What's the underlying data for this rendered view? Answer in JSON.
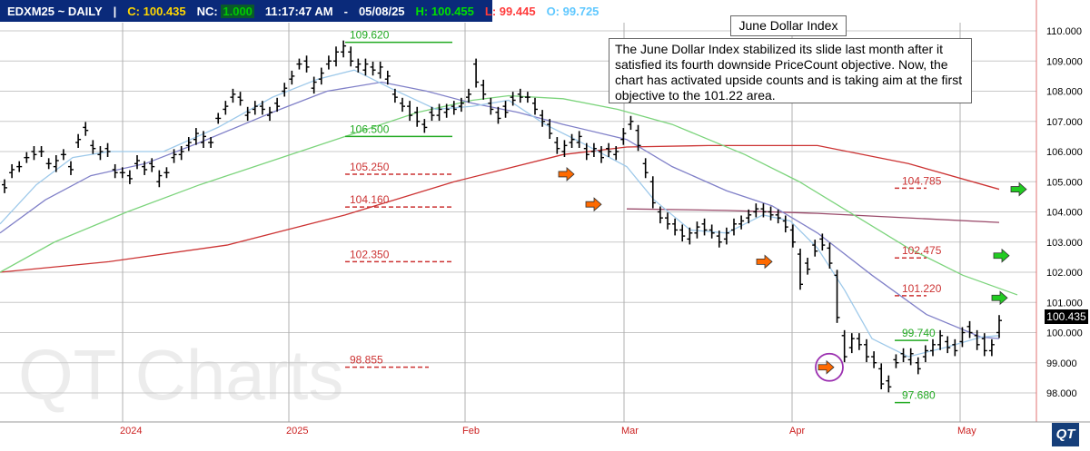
{
  "header": {
    "symbol": "EDXM25 ~ DAILY",
    "sep": "|",
    "close_label": "C:",
    "close": "100.435",
    "nc_label": "NC:",
    "nc": "1.000",
    "time": "11:17:47 AM",
    "dash": "-",
    "date": "05/08/25",
    "high_label": "H:",
    "high": "100.455",
    "low_label": "L:",
    "low": "99.445",
    "open_label": "O:",
    "open": "99.725",
    "colors": {
      "bg": "#0a2a7a",
      "close": "#ffd700",
      "nc": "#00c800",
      "high": "#00c800",
      "low": "#ff3b3b",
      "open": "#5fc8ff"
    }
  },
  "info_title": "June Dollar Index",
  "info_text": "The June Dollar Index stabilized its slide last month after it satisfied its fourth downside PriceCount objective. Now, the chart has activated upside counts and is taking aim at the first objective to the 101.22 area.",
  "watermark": "QT Charts",
  "logo_text": "QT",
  "last_price": "100.435",
  "chart_data": {
    "type": "line",
    "subtype": "ohlc-bars with moving averages",
    "y_axis": {
      "min": 97.5,
      "max": 110.2,
      "side": "right",
      "ticks": [
        "110.000",
        "109.000",
        "108.000",
        "107.000",
        "106.000",
        "105.000",
        "104.000",
        "103.000",
        "102.000",
        "101.000",
        "100.000",
        "99.000",
        "98.000"
      ]
    },
    "x_axis": {
      "labels": [
        "2024",
        "2025",
        "Feb",
        "Mar",
        "Apr",
        "May"
      ]
    },
    "grid": true,
    "colors": {
      "bars": "#000000",
      "ma_fast": "#9ec9ea",
      "ma_mid": "#8080c8",
      "ma_green": "#7cd47c",
      "ma_red": "#cc3333",
      "ma_maroon": "#9a4a6a",
      "upside_level": "#22aa22",
      "downside_level": "#cc3333",
      "arrow_down": "#ff6a00",
      "arrow_up": "#22cc22",
      "circle": "#9b30b0"
    },
    "price_levels": [
      {
        "label": "109.620",
        "value": 109.62,
        "style": "solid",
        "color": "green"
      },
      {
        "label": "106.500",
        "value": 106.5,
        "style": "solid",
        "color": "green"
      },
      {
        "label": "105.250",
        "value": 105.25,
        "style": "dashed",
        "color": "red"
      },
      {
        "label": "104.160",
        "value": 104.16,
        "style": "dashed",
        "color": "red"
      },
      {
        "label": "102.350",
        "value": 102.35,
        "style": "dashed",
        "color": "red"
      },
      {
        "label": "98.855",
        "value": 98.855,
        "style": "dashed",
        "color": "red"
      },
      {
        "label": "104.785",
        "value": 104.785,
        "style": "dashed",
        "color": "red"
      },
      {
        "label": "102.475",
        "value": 102.475,
        "style": "dashed",
        "color": "red"
      },
      {
        "label": "101.220",
        "value": 101.22,
        "style": "dashed",
        "color": "red"
      },
      {
        "label": "99.740",
        "value": 99.74,
        "style": "solid",
        "color": "green"
      },
      {
        "label": "97.680",
        "value": 97.68,
        "style": "solid",
        "color": "green"
      }
    ],
    "bars": [
      [
        104.9,
        104.8
      ],
      [
        105.3,
        105.4
      ],
      [
        105.5,
        105.5
      ],
      [
        105.8,
        105.8
      ],
      [
        106.0,
        105.9
      ],
      [
        106.0,
        106.0
      ],
      [
        105.6,
        105.6
      ],
      [
        105.5,
        105.7
      ],
      [
        105.9,
        105.9
      ],
      [
        105.5,
        105.4
      ],
      [
        106.3,
        106.4
      ],
      [
        106.8,
        106.7
      ],
      [
        106.2,
        106.1
      ],
      [
        105.9,
        106.0
      ],
      [
        106.1,
        106.0
      ],
      [
        105.4,
        105.3
      ],
      [
        105.3,
        105.3
      ],
      [
        105.2,
        105.1
      ],
      [
        105.6,
        105.7
      ],
      [
        105.5,
        105.4
      ],
      [
        105.6,
        105.5
      ],
      [
        105.0,
        105.2
      ],
      [
        105.3,
        105.3
      ],
      [
        105.8,
        105.9
      ],
      [
        105.9,
        106.0
      ],
      [
        106.2,
        106.3
      ],
      [
        106.4,
        106.6
      ],
      [
        106.3,
        106.5
      ],
      [
        106.3,
        106.3
      ],
      [
        107.1,
        107.1
      ],
      [
        107.4,
        107.5
      ],
      [
        107.8,
        107.9
      ],
      [
        107.8,
        107.7
      ],
      [
        107.2,
        107.3
      ],
      [
        107.4,
        107.5
      ],
      [
        107.5,
        107.4
      ],
      [
        107.2,
        107.3
      ],
      [
        107.6,
        107.5
      ],
      [
        108.0,
        108.1
      ],
      [
        108.4,
        108.5
      ],
      [
        108.9,
        108.9
      ],
      [
        109.0,
        108.8
      ],
      [
        108.1,
        108.3
      ],
      [
        108.4,
        108.6
      ],
      [
        108.9,
        109.0
      ],
      [
        109.0,
        109.3
      ],
      [
        109.3,
        109.5
      ],
      [
        109.3,
        109.0
      ],
      [
        108.8,
        108.9
      ],
      [
        108.7,
        108.9
      ],
      [
        108.8,
        108.7
      ],
      [
        108.6,
        108.8
      ],
      [
        108.4,
        108.5
      ],
      [
        107.9,
        107.8
      ],
      [
        107.6,
        107.5
      ],
      [
        107.5,
        107.2
      ],
      [
        107.3,
        107.0
      ],
      [
        106.9,
        106.8
      ],
      [
        107.3,
        107.2
      ],
      [
        107.2,
        107.4
      ],
      [
        107.3,
        107.4
      ],
      [
        107.5,
        107.4
      ],
      [
        107.5,
        107.6
      ],
      [
        107.8,
        107.9
      ],
      [
        108.9,
        108.3
      ],
      [
        108.2,
        107.9
      ],
      [
        107.6,
        107.4
      ],
      [
        107.3,
        107.1
      ],
      [
        107.5,
        107.3
      ],
      [
        107.8,
        107.7
      ],
      [
        107.9,
        107.8
      ],
      [
        107.8,
        107.8
      ],
      [
        107.6,
        107.4
      ],
      [
        107.2,
        107.0
      ],
      [
        106.9,
        106.6
      ],
      [
        106.3,
        106.1
      ],
      [
        106.0,
        106.2
      ],
      [
        106.3,
        106.4
      ],
      [
        106.3,
        106.5
      ],
      [
        106.1,
        105.9
      ],
      [
        106.0,
        106.1
      ],
      [
        106.0,
        105.8
      ],
      [
        106.1,
        106.0
      ],
      [
        105.9,
        106.0
      ],
      [
        106.4,
        106.6
      ],
      [
        106.9,
        107.0
      ],
      [
        106.7,
        106.2
      ],
      [
        105.6,
        105.3
      ],
      [
        105.0,
        104.3
      ],
      [
        104.0,
        103.8
      ],
      [
        103.8,
        103.6
      ],
      [
        103.6,
        103.4
      ],
      [
        103.4,
        103.2
      ],
      [
        103.1,
        103.3
      ],
      [
        103.3,
        103.5
      ],
      [
        103.6,
        103.4
      ],
      [
        103.4,
        103.3
      ],
      [
        103.2,
        103.0
      ],
      [
        103.1,
        103.3
      ],
      [
        103.4,
        103.6
      ],
      [
        103.6,
        103.7
      ],
      [
        103.8,
        103.9
      ],
      [
        104.0,
        104.1
      ],
      [
        104.1,
        104.0
      ],
      [
        104.0,
        103.9
      ],
      [
        103.9,
        103.8
      ],
      [
        103.7,
        103.5
      ],
      [
        103.4,
        103.0
      ],
      [
        102.6,
        101.6
      ],
      [
        102.3,
        102.1
      ],
      [
        102.9,
        102.7
      ],
      [
        103.1,
        102.9
      ],
      [
        102.8,
        102.3
      ],
      [
        101.9,
        100.5
      ],
      [
        99.9,
        99.2
      ],
      [
        99.5,
        99.8
      ],
      [
        99.8,
        99.6
      ],
      [
        99.6,
        99.2
      ],
      [
        99.2,
        99.0
      ],
      [
        98.8,
        98.3
      ],
      [
        98.4,
        98.2
      ],
      [
        99.1,
        99.0
      ],
      [
        99.3,
        99.2
      ],
      [
        99.1,
        99.3
      ],
      [
        99.0,
        98.8
      ],
      [
        99.2,
        99.4
      ],
      [
        99.4,
        99.6
      ],
      [
        99.6,
        99.9
      ],
      [
        99.7,
        99.5
      ],
      [
        99.6,
        99.4
      ],
      [
        99.7,
        100.0
      ],
      [
        100.2,
        100.0
      ],
      [
        99.9,
        99.6
      ],
      [
        99.8,
        99.4
      ],
      [
        99.4,
        99.6
      ],
      [
        100.0,
        100.4
      ]
    ],
    "arrows": [
      {
        "dir": "down",
        "y": 105.25
      },
      {
        "dir": "down",
        "y": 104.25
      },
      {
        "dir": "down",
        "y": 102.35
      },
      {
        "dir": "down",
        "y": 98.85
      },
      {
        "dir": "up",
        "y": 104.75
      },
      {
        "dir": "up",
        "y": 102.55
      },
      {
        "dir": "up",
        "y": 101.15
      }
    ]
  }
}
